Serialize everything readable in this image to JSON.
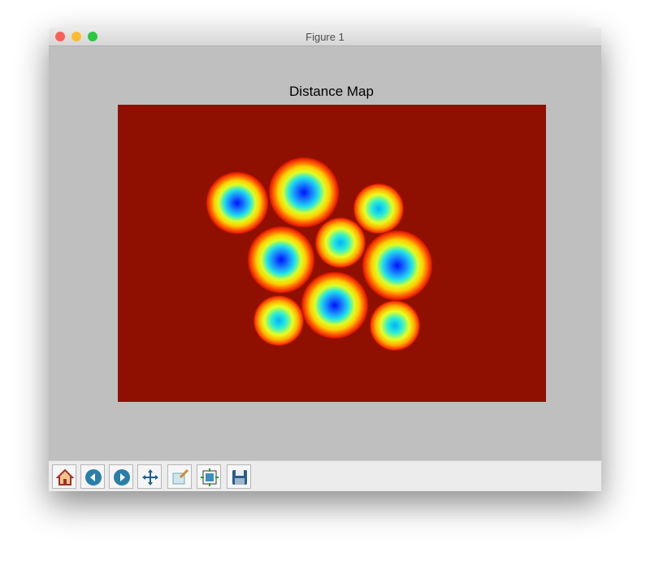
{
  "window": {
    "title": "Figure 1"
  },
  "figure": {
    "title": "Distance Map"
  }
}
